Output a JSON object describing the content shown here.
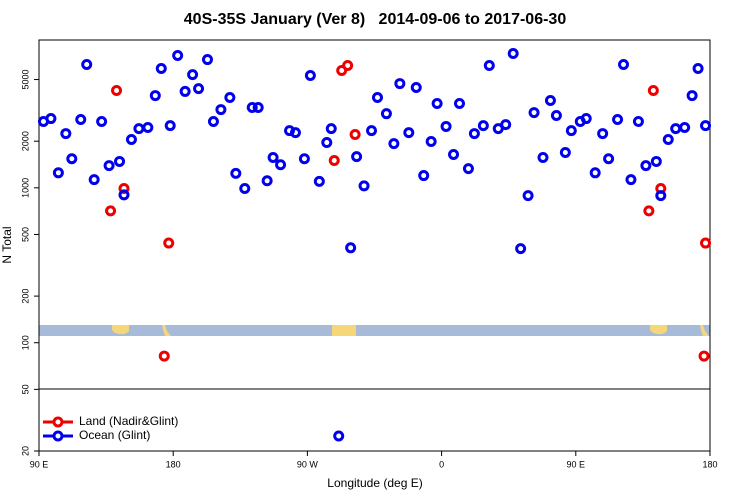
{
  "chart_data": {
    "type": "scatter",
    "title": "40S-35S January (Ver 8)   2014-09-06 to 2017-06-30",
    "xlabel": "Longitude (deg E)",
    "ylabel": "N Total",
    "xlim": [
      90,
      540
    ],
    "xticks": [
      {
        "value": 90,
        "label": "90 E"
      },
      {
        "value": 180,
        "label": "180"
      },
      {
        "value": 270,
        "label": "90 W"
      },
      {
        "value": 360,
        "label": "0"
      },
      {
        "value": 450,
        "label": "90 E"
      },
      {
        "value": 540,
        "label": "180"
      }
    ],
    "ylim": [
      20,
      9000
    ],
    "ylog": true,
    "yticks": [
      20,
      50,
      100,
      200,
      500,
      1000,
      2000,
      5000
    ],
    "legend": "bottom-left",
    "series": [
      {
        "name": "Land (Nadir&Glint)",
        "color": "#ee0000",
        "x": [
          138,
          142,
          147,
          174,
          177,
          288,
          293,
          297,
          302,
          499,
          502,
          507,
          536,
          537
        ],
        "values": [
          710,
          4250,
          990,
          82,
          440,
          1500,
          5720,
          6160,
          2210,
          710,
          4250,
          990,
          82,
          440
        ]
      },
      {
        "name": "Ocean (Glint)",
        "color": "#0000ee",
        "x": [
          93,
          98,
          103,
          108,
          112,
          118,
          122,
          127,
          132,
          137,
          144,
          147,
          152,
          157,
          163,
          168,
          172,
          178,
          183,
          188,
          193,
          197,
          203,
          207,
          212,
          218,
          222,
          228,
          233,
          237,
          243,
          247,
          252,
          258,
          262,
          268,
          272,
          278,
          283,
          286,
          291,
          299,
          303,
          308,
          313,
          317,
          323,
          328,
          332,
          338,
          343,
          348,
          353,
          357,
          363,
          368,
          372,
          378,
          382,
          388,
          392,
          398,
          403,
          408,
          413,
          418,
          422,
          428,
          433,
          437,
          443,
          447,
          453,
          457,
          463,
          468,
          472,
          478,
          482,
          487,
          492,
          497,
          504,
          507,
          512,
          517,
          523,
          528,
          532,
          537
        ],
        "values": [
          2680,
          2800,
          1250,
          2240,
          1540,
          2760,
          6250,
          1130,
          2680,
          1390,
          1480,
          900,
          2050,
          2410,
          2450,
          3940,
          5890,
          2520,
          7150,
          4190,
          5380,
          4370,
          6730,
          2680,
          3200,
          3830,
          1240,
          990,
          3300,
          3300,
          1110,
          1570,
          1410,
          2340,
          2270,
          1540,
          5310,
          1100,
          1960,
          2410,
          25,
          410,
          1590,
          1030,
          2340,
          3830,
          3010,
          1930,
          4710,
          2270,
          4440,
          1200,
          1990,
          3500,
          2490,
          1640,
          3500,
          1330,
          2240,
          2520,
          6160,
          2410,
          2560,
          7360,
          405,
          890,
          3060,
          1570,
          3660,
          2930,
          1690,
          2340,
          2680,
          2800,
          1250,
          2240,
          1540,
          2760,
          6250,
          1130,
          2680,
          1390,
          1480,
          890,
          2050,
          2410,
          2450,
          3940,
          5890,
          2520
        ]
      }
    ]
  }
}
